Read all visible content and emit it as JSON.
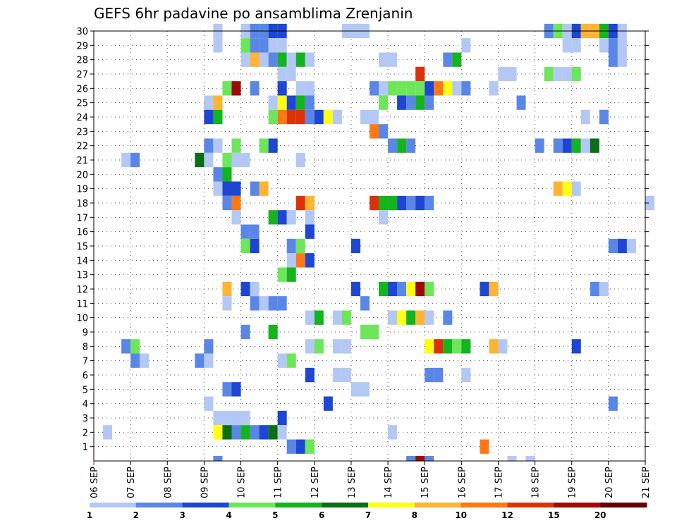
{
  "chart_data": {
    "type": "heatmap",
    "title": "GEFS 6hr padavine po ansamblima Zrenjanin",
    "xlabel": "",
    "ylabel": "",
    "x_ticks": [
      "06 SEP",
      "07 SEP",
      "08 SEP",
      "09 SEP",
      "10 SEP",
      "11 SEP",
      "12 SEP",
      "13 SEP",
      "14 SEP",
      "15 SEP",
      "16 SEP",
      "17 SEP",
      "18 SEP",
      "19 SEP",
      "20 SEP",
      "21 SEP"
    ],
    "y_ticks": [
      1,
      2,
      3,
      4,
      5,
      6,
      7,
      8,
      9,
      10,
      11,
      12,
      13,
      14,
      15,
      16,
      17,
      18,
      19,
      20,
      21,
      22,
      23,
      24,
      25,
      26,
      27,
      28,
      29,
      30
    ],
    "x_range": [
      0,
      60
    ],
    "y_range": [
      0,
      30
    ],
    "grid": true,
    "step_hours": 6,
    "colorbar": {
      "position": "bottom",
      "labels": [
        "1",
        "2",
        "3",
        "4",
        "5",
        "6",
        "7",
        "8",
        "10",
        "12",
        "15",
        "20"
      ],
      "colors": [
        "#b4c8f5",
        "#5a87e6",
        "#1e46d2",
        "#6ee65a",
        "#14b41e",
        "#0a6e14",
        "#ffff14",
        "#ffb432",
        "#ff7814",
        "#dc320a",
        "#a00a0a",
        "#640000"
      ]
    },
    "legend": [
      {
        "color": "#b4c8f5",
        "label": "1-2 mm"
      },
      {
        "color": "#5a87e6",
        "label": "2-3 mm"
      },
      {
        "color": "#1e46d2",
        "label": "3-4 mm"
      },
      {
        "color": "#6ee65a",
        "label": "4-5 mm"
      },
      {
        "color": "#14b41e",
        "label": "5-6 mm"
      },
      {
        "color": "#0a6e14",
        "label": "6-7 mm"
      },
      {
        "color": "#ffff14",
        "label": "7-8 mm"
      },
      {
        "color": "#ffb432",
        "label": "8-10 mm"
      },
      {
        "color": "#ff7814",
        "label": "10-12 mm"
      },
      {
        "color": "#dc320a",
        "label": "12-15 mm"
      },
      {
        "color": "#a00a0a",
        "label": "15-20 mm"
      },
      {
        "color": "#640000",
        "label": ">20 mm"
      }
    ],
    "cells": [
      {
        "m": 30,
        "t": 13,
        "c": 0
      },
      {
        "m": 30,
        "t": 16,
        "c": 0
      },
      {
        "m": 30,
        "t": 17,
        "c": 1
      },
      {
        "m": 30,
        "t": 18,
        "c": 1
      },
      {
        "m": 30,
        "t": 19,
        "c": 2
      },
      {
        "m": 30,
        "t": 20,
        "c": 2
      },
      {
        "m": 30,
        "t": 27,
        "c": 0
      },
      {
        "m": 30,
        "t": 28,
        "c": 0
      },
      {
        "m": 30,
        "t": 29,
        "c": 0
      },
      {
        "m": 30,
        "t": 49,
        "c": 1
      },
      {
        "m": 30,
        "t": 50,
        "c": 3
      },
      {
        "m": 30,
        "t": 51,
        "c": 0
      },
      {
        "m": 30,
        "t": 52,
        "c": 2
      },
      {
        "m": 30,
        "t": 53,
        "c": 7
      },
      {
        "m": 30,
        "t": 54,
        "c": 7
      },
      {
        "m": 30,
        "t": 55,
        "c": 4
      },
      {
        "m": 30,
        "t": 56,
        "c": 2
      },
      {
        "m": 30,
        "t": 57,
        "c": 0
      },
      {
        "m": 29,
        "t": 13,
        "c": 0
      },
      {
        "m": 29,
        "t": 16,
        "c": 3
      },
      {
        "m": 29,
        "t": 17,
        "c": 1
      },
      {
        "m": 29,
        "t": 18,
        "c": 1
      },
      {
        "m": 29,
        "t": 19,
        "c": 0
      },
      {
        "m": 29,
        "t": 20,
        "c": 0
      },
      {
        "m": 29,
        "t": 40,
        "c": 0
      },
      {
        "m": 29,
        "t": 51,
        "c": 0
      },
      {
        "m": 29,
        "t": 52,
        "c": 0
      },
      {
        "m": 29,
        "t": 55,
        "c": 0
      },
      {
        "m": 29,
        "t": 56,
        "c": 1
      },
      {
        "m": 29,
        "t": 57,
        "c": 0
      },
      {
        "m": 28,
        "t": 16,
        "c": 0
      },
      {
        "m": 28,
        "t": 17,
        "c": 7
      },
      {
        "m": 28,
        "t": 18,
        "c": 0
      },
      {
        "m": 28,
        "t": 19,
        "c": 1
      },
      {
        "m": 28,
        "t": 20,
        "c": 4
      },
      {
        "m": 28,
        "t": 21,
        "c": 0
      },
      {
        "m": 28,
        "t": 22,
        "c": 4
      },
      {
        "m": 28,
        "t": 23,
        "c": 0
      },
      {
        "m": 28,
        "t": 31,
        "c": 0
      },
      {
        "m": 28,
        "t": 32,
        "c": 0
      },
      {
        "m": 28,
        "t": 38,
        "c": 1
      },
      {
        "m": 28,
        "t": 39,
        "c": 4
      },
      {
        "m": 28,
        "t": 56,
        "c": 1
      },
      {
        "m": 28,
        "t": 57,
        "c": 0
      },
      {
        "m": 27,
        "t": 20,
        "c": 0
      },
      {
        "m": 27,
        "t": 21,
        "c": 0
      },
      {
        "m": 27,
        "t": 35,
        "c": 9
      },
      {
        "m": 27,
        "t": 44,
        "c": 0
      },
      {
        "m": 27,
        "t": 45,
        "c": 0
      },
      {
        "m": 27,
        "t": 49,
        "c": 3
      },
      {
        "m": 27,
        "t": 50,
        "c": 0
      },
      {
        "m": 27,
        "t": 51,
        "c": 0
      },
      {
        "m": 27,
        "t": 52,
        "c": 3
      },
      {
        "m": 26,
        "t": 14,
        "c": 3
      },
      {
        "m": 26,
        "t": 15,
        "c": 10
      },
      {
        "m": 26,
        "t": 17,
        "c": 1
      },
      {
        "m": 26,
        "t": 20,
        "c": 2
      },
      {
        "m": 26,
        "t": 22,
        "c": 0
      },
      {
        "m": 26,
        "t": 23,
        "c": 0
      },
      {
        "m": 26,
        "t": 30,
        "c": 1
      },
      {
        "m": 26,
        "t": 31,
        "c": 0
      },
      {
        "m": 26,
        "t": 32,
        "c": 3
      },
      {
        "m": 26,
        "t": 33,
        "c": 3
      },
      {
        "m": 26,
        "t": 34,
        "c": 3
      },
      {
        "m": 26,
        "t": 35,
        "c": 3
      },
      {
        "m": 26,
        "t": 36,
        "c": 2
      },
      {
        "m": 26,
        "t": 37,
        "c": 8
      },
      {
        "m": 26,
        "t": 38,
        "c": 6
      },
      {
        "m": 26,
        "t": 39,
        "c": 0
      },
      {
        "m": 26,
        "t": 40,
        "c": 1
      },
      {
        "m": 26,
        "t": 43,
        "c": 0
      },
      {
        "m": 25,
        "t": 12,
        "c": 0
      },
      {
        "m": 25,
        "t": 13,
        "c": 7
      },
      {
        "m": 25,
        "t": 19,
        "c": 0
      },
      {
        "m": 25,
        "t": 20,
        "c": 6
      },
      {
        "m": 25,
        "t": 21,
        "c": 2
      },
      {
        "m": 25,
        "t": 22,
        "c": 4
      },
      {
        "m": 25,
        "t": 23,
        "c": 1
      },
      {
        "m": 25,
        "t": 31,
        "c": 3
      },
      {
        "m": 25,
        "t": 33,
        "c": 2
      },
      {
        "m": 25,
        "t": 34,
        "c": 1
      },
      {
        "m": 25,
        "t": 35,
        "c": 4
      },
      {
        "m": 25,
        "t": 36,
        "c": 1
      },
      {
        "m": 25,
        "t": 46,
        "c": 1
      },
      {
        "m": 24,
        "t": 12,
        "c": 2
      },
      {
        "m": 24,
        "t": 13,
        "c": 4
      },
      {
        "m": 24,
        "t": 19,
        "c": 3
      },
      {
        "m": 24,
        "t": 20,
        "c": 8
      },
      {
        "m": 24,
        "t": 21,
        "c": 9
      },
      {
        "m": 24,
        "t": 22,
        "c": 9
      },
      {
        "m": 24,
        "t": 23,
        "c": 1
      },
      {
        "m": 24,
        "t": 24,
        "c": 2
      },
      {
        "m": 24,
        "t": 25,
        "c": 6
      },
      {
        "m": 24,
        "t": 26,
        "c": 0
      },
      {
        "m": 24,
        "t": 29,
        "c": 0
      },
      {
        "m": 24,
        "t": 30,
        "c": 0
      },
      {
        "m": 24,
        "t": 53,
        "c": 0
      },
      {
        "m": 24,
        "t": 55,
        "c": 1
      },
      {
        "m": 23,
        "t": 30,
        "c": 8
      },
      {
        "m": 23,
        "t": 31,
        "c": 1
      },
      {
        "m": 22,
        "t": 12,
        "c": 1
      },
      {
        "m": 22,
        "t": 13,
        "c": 0
      },
      {
        "m": 22,
        "t": 15,
        "c": 3
      },
      {
        "m": 22,
        "t": 18,
        "c": 3
      },
      {
        "m": 22,
        "t": 19,
        "c": 2
      },
      {
        "m": 22,
        "t": 32,
        "c": 1
      },
      {
        "m": 22,
        "t": 33,
        "c": 4
      },
      {
        "m": 22,
        "t": 34,
        "c": 1
      },
      {
        "m": 22,
        "t": 48,
        "c": 1
      },
      {
        "m": 22,
        "t": 50,
        "c": 1
      },
      {
        "m": 22,
        "t": 51,
        "c": 2
      },
      {
        "m": 22,
        "t": 52,
        "c": 4
      },
      {
        "m": 22,
        "t": 53,
        "c": 0
      },
      {
        "m": 22,
        "t": 54,
        "c": 5
      },
      {
        "m": 21,
        "t": 3,
        "c": 0
      },
      {
        "m": 21,
        "t": 4,
        "c": 1
      },
      {
        "m": 21,
        "t": 11,
        "c": 5
      },
      {
        "m": 21,
        "t": 12,
        "c": 0
      },
      {
        "m": 21,
        "t": 14,
        "c": 3
      },
      {
        "m": 21,
        "t": 15,
        "c": 0
      },
      {
        "m": 21,
        "t": 16,
        "c": 0
      },
      {
        "m": 21,
        "t": 22,
        "c": 0
      },
      {
        "m": 20,
        "t": 13,
        "c": 1
      },
      {
        "m": 20,
        "t": 14,
        "c": 4
      },
      {
        "m": 19,
        "t": 13,
        "c": 0
      },
      {
        "m": 19,
        "t": 14,
        "c": 2
      },
      {
        "m": 19,
        "t": 15,
        "c": 2
      },
      {
        "m": 19,
        "t": 17,
        "c": 1
      },
      {
        "m": 19,
        "t": 18,
        "c": 7
      },
      {
        "m": 19,
        "t": 50,
        "c": 7
      },
      {
        "m": 19,
        "t": 51,
        "c": 6
      },
      {
        "m": 19,
        "t": 52,
        "c": 0
      },
      {
        "m": 18,
        "t": 14,
        "c": 1
      },
      {
        "m": 18,
        "t": 15,
        "c": 8
      },
      {
        "m": 18,
        "t": 22,
        "c": 9
      },
      {
        "m": 18,
        "t": 23,
        "c": 7
      },
      {
        "m": 18,
        "t": 30,
        "c": 9
      },
      {
        "m": 18,
        "t": 31,
        "c": 4
      },
      {
        "m": 18,
        "t": 32,
        "c": 4
      },
      {
        "m": 18,
        "t": 33,
        "c": 2
      },
      {
        "m": 18,
        "t": 34,
        "c": 1
      },
      {
        "m": 18,
        "t": 35,
        "c": 2
      },
      {
        "m": 18,
        "t": 36,
        "c": 1
      },
      {
        "m": 18,
        "t": 60,
        "c": 0
      },
      {
        "m": 17,
        "t": 15,
        "c": 0
      },
      {
        "m": 17,
        "t": 19,
        "c": 4
      },
      {
        "m": 17,
        "t": 20,
        "c": 2
      },
      {
        "m": 17,
        "t": 21,
        "c": 0
      },
      {
        "m": 17,
        "t": 23,
        "c": 0
      },
      {
        "m": 17,
        "t": 31,
        "c": 0
      },
      {
        "m": 16,
        "t": 16,
        "c": 1
      },
      {
        "m": 16,
        "t": 17,
        "c": 1
      },
      {
        "m": 16,
        "t": 23,
        "c": 2
      },
      {
        "m": 15,
        "t": 16,
        "c": 3
      },
      {
        "m": 15,
        "t": 17,
        "c": 2
      },
      {
        "m": 15,
        "t": 21,
        "c": 1
      },
      {
        "m": 15,
        "t": 22,
        "c": 3
      },
      {
        "m": 15,
        "t": 28,
        "c": 2
      },
      {
        "m": 15,
        "t": 56,
        "c": 1
      },
      {
        "m": 15,
        "t": 57,
        "c": 2
      },
      {
        "m": 15,
        "t": 58,
        "c": 0
      },
      {
        "m": 14,
        "t": 21,
        "c": 0
      },
      {
        "m": 14,
        "t": 22,
        "c": 8
      },
      {
        "m": 14,
        "t": 23,
        "c": 2
      },
      {
        "m": 13,
        "t": 20,
        "c": 3
      },
      {
        "m": 13,
        "t": 21,
        "c": 4
      },
      {
        "m": 12,
        "t": 14,
        "c": 7
      },
      {
        "m": 12,
        "t": 16,
        "c": 2
      },
      {
        "m": 12,
        "t": 17,
        "c": 0
      },
      {
        "m": 12,
        "t": 28,
        "c": 2
      },
      {
        "m": 12,
        "t": 31,
        "c": 4
      },
      {
        "m": 12,
        "t": 32,
        "c": 2
      },
      {
        "m": 12,
        "t": 33,
        "c": 1
      },
      {
        "m": 12,
        "t": 34,
        "c": 6
      },
      {
        "m": 12,
        "t": 35,
        "c": 10
      },
      {
        "m": 12,
        "t": 36,
        "c": 3
      },
      {
        "m": 12,
        "t": 42,
        "c": 2
      },
      {
        "m": 12,
        "t": 43,
        "c": 7
      },
      {
        "m": 12,
        "t": 54,
        "c": 1
      },
      {
        "m": 12,
        "t": 55,
        "c": 0
      },
      {
        "m": 11,
        "t": 14,
        "c": 0
      },
      {
        "m": 11,
        "t": 17,
        "c": 1
      },
      {
        "m": 11,
        "t": 18,
        "c": 0
      },
      {
        "m": 11,
        "t": 19,
        "c": 1
      },
      {
        "m": 11,
        "t": 20,
        "c": 1
      },
      {
        "m": 11,
        "t": 29,
        "c": 1
      },
      {
        "m": 10,
        "t": 23,
        "c": 0
      },
      {
        "m": 10,
        "t": 24,
        "c": 4
      },
      {
        "m": 10,
        "t": 26,
        "c": 0
      },
      {
        "m": 10,
        "t": 27,
        "c": 3
      },
      {
        "m": 10,
        "t": 32,
        "c": 0
      },
      {
        "m": 10,
        "t": 33,
        "c": 6
      },
      {
        "m": 10,
        "t": 34,
        "c": 4
      },
      {
        "m": 10,
        "t": 35,
        "c": 7
      },
      {
        "m": 10,
        "t": 36,
        "c": 0
      },
      {
        "m": 10,
        "t": 38,
        "c": 1
      },
      {
        "m": 9,
        "t": 16,
        "c": 1
      },
      {
        "m": 9,
        "t": 19,
        "c": 4
      },
      {
        "m": 9,
        "t": 29,
        "c": 3
      },
      {
        "m": 9,
        "t": 30,
        "c": 3
      },
      {
        "m": 8,
        "t": 3,
        "c": 1
      },
      {
        "m": 8,
        "t": 4,
        "c": 3
      },
      {
        "m": 8,
        "t": 12,
        "c": 1
      },
      {
        "m": 8,
        "t": 23,
        "c": 0
      },
      {
        "m": 8,
        "t": 24,
        "c": 3
      },
      {
        "m": 8,
        "t": 26,
        "c": 0
      },
      {
        "m": 8,
        "t": 27,
        "c": 0
      },
      {
        "m": 8,
        "t": 36,
        "c": 6
      },
      {
        "m": 8,
        "t": 37,
        "c": 9
      },
      {
        "m": 8,
        "t": 38,
        "c": 4
      },
      {
        "m": 8,
        "t": 39,
        "c": 3
      },
      {
        "m": 8,
        "t": 40,
        "c": 4
      },
      {
        "m": 8,
        "t": 43,
        "c": 7
      },
      {
        "m": 8,
        "t": 44,
        "c": 0
      },
      {
        "m": 8,
        "t": 52,
        "c": 2
      },
      {
        "m": 7,
        "t": 4,
        "c": 1
      },
      {
        "m": 7,
        "t": 5,
        "c": 0
      },
      {
        "m": 7,
        "t": 11,
        "c": 1
      },
      {
        "m": 7,
        "t": 12,
        "c": 0
      },
      {
        "m": 7,
        "t": 20,
        "c": 0
      },
      {
        "m": 7,
        "t": 21,
        "c": 3
      },
      {
        "m": 6,
        "t": 23,
        "c": 2
      },
      {
        "m": 6,
        "t": 26,
        "c": 0
      },
      {
        "m": 6,
        "t": 27,
        "c": 0
      },
      {
        "m": 6,
        "t": 36,
        "c": 1
      },
      {
        "m": 6,
        "t": 37,
        "c": 1
      },
      {
        "m": 6,
        "t": 40,
        "c": 0
      },
      {
        "m": 5,
        "t": 14,
        "c": 1
      },
      {
        "m": 5,
        "t": 15,
        "c": 2
      },
      {
        "m": 5,
        "t": 28,
        "c": 0
      },
      {
        "m": 5,
        "t": 29,
        "c": 0
      },
      {
        "m": 4,
        "t": 12,
        "c": 0
      },
      {
        "m": 4,
        "t": 25,
        "c": 2
      },
      {
        "m": 4,
        "t": 56,
        "c": 1
      },
      {
        "m": 3,
        "t": 13,
        "c": 0
      },
      {
        "m": 3,
        "t": 14,
        "c": 0
      },
      {
        "m": 3,
        "t": 15,
        "c": 0
      },
      {
        "m": 3,
        "t": 16,
        "c": 0
      },
      {
        "m": 3,
        "t": 20,
        "c": 2
      },
      {
        "m": 2,
        "t": 1,
        "c": 0
      },
      {
        "m": 2,
        "t": 13,
        "c": 6
      },
      {
        "m": 2,
        "t": 14,
        "c": 5
      },
      {
        "m": 2,
        "t": 15,
        "c": 1
      },
      {
        "m": 2,
        "t": 16,
        "c": 4
      },
      {
        "m": 2,
        "t": 17,
        "c": 1
      },
      {
        "m": 2,
        "t": 18,
        "c": 2
      },
      {
        "m": 2,
        "t": 19,
        "c": 5
      },
      {
        "m": 2,
        "t": 20,
        "c": 0
      },
      {
        "m": 2,
        "t": 32,
        "c": 0
      },
      {
        "m": 1,
        "t": 21,
        "c": 1
      },
      {
        "m": 1,
        "t": 22,
        "c": 2
      },
      {
        "m": 1,
        "t": 23,
        "c": 3
      },
      {
        "m": 1,
        "t": 42,
        "c": 8
      },
      {
        "m": 0,
        "t": 13,
        "c": 1
      },
      {
        "m": 0,
        "t": 34,
        "c": 1
      },
      {
        "m": 0,
        "t": 35,
        "c": 10
      },
      {
        "m": 0,
        "t": 36,
        "c": 1
      },
      {
        "m": 0,
        "t": 45,
        "c": 0
      },
      {
        "m": 0,
        "t": 47,
        "c": 0
      }
    ]
  }
}
